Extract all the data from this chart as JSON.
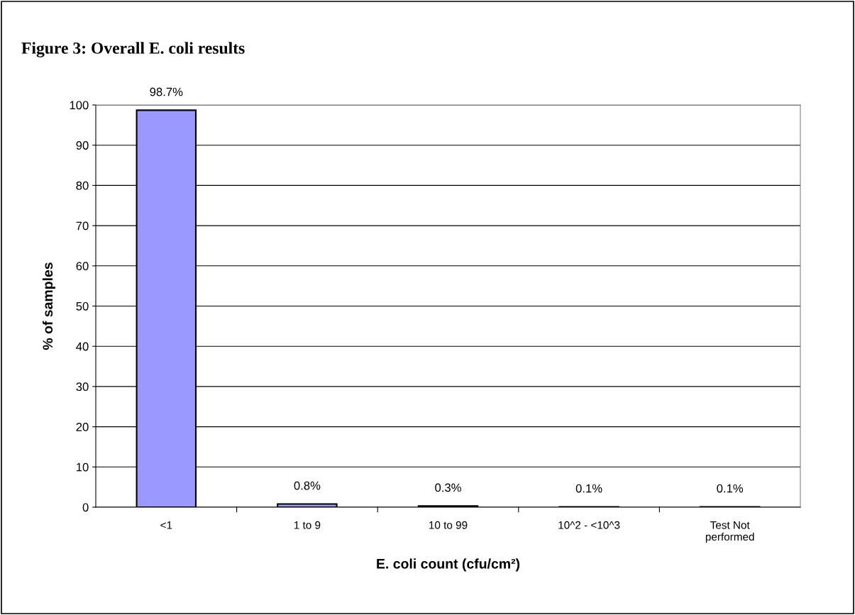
{
  "chart_data": {
    "type": "bar",
    "title": "Figure 3: Overall E. coli results",
    "xlabel": "E. coli count (cfu/cm²)",
    "ylabel": "% of samples",
    "categories": [
      "<1",
      "1 to 9",
      "10 to 99",
      "10^2 - <10^3",
      "Test Not\nperformed"
    ],
    "values": [
      98.7,
      0.8,
      0.3,
      0.1,
      0.1
    ],
    "value_labels": [
      "98.7%",
      "0.8%",
      "0.3%",
      "0.1%",
      "0.1%"
    ],
    "color": "#9999ff",
    "ylim": [
      0,
      100
    ],
    "yticks": [
      0,
      10,
      20,
      30,
      40,
      50,
      60,
      70,
      80,
      90,
      100
    ],
    "grid": "y",
    "legend": false
  }
}
